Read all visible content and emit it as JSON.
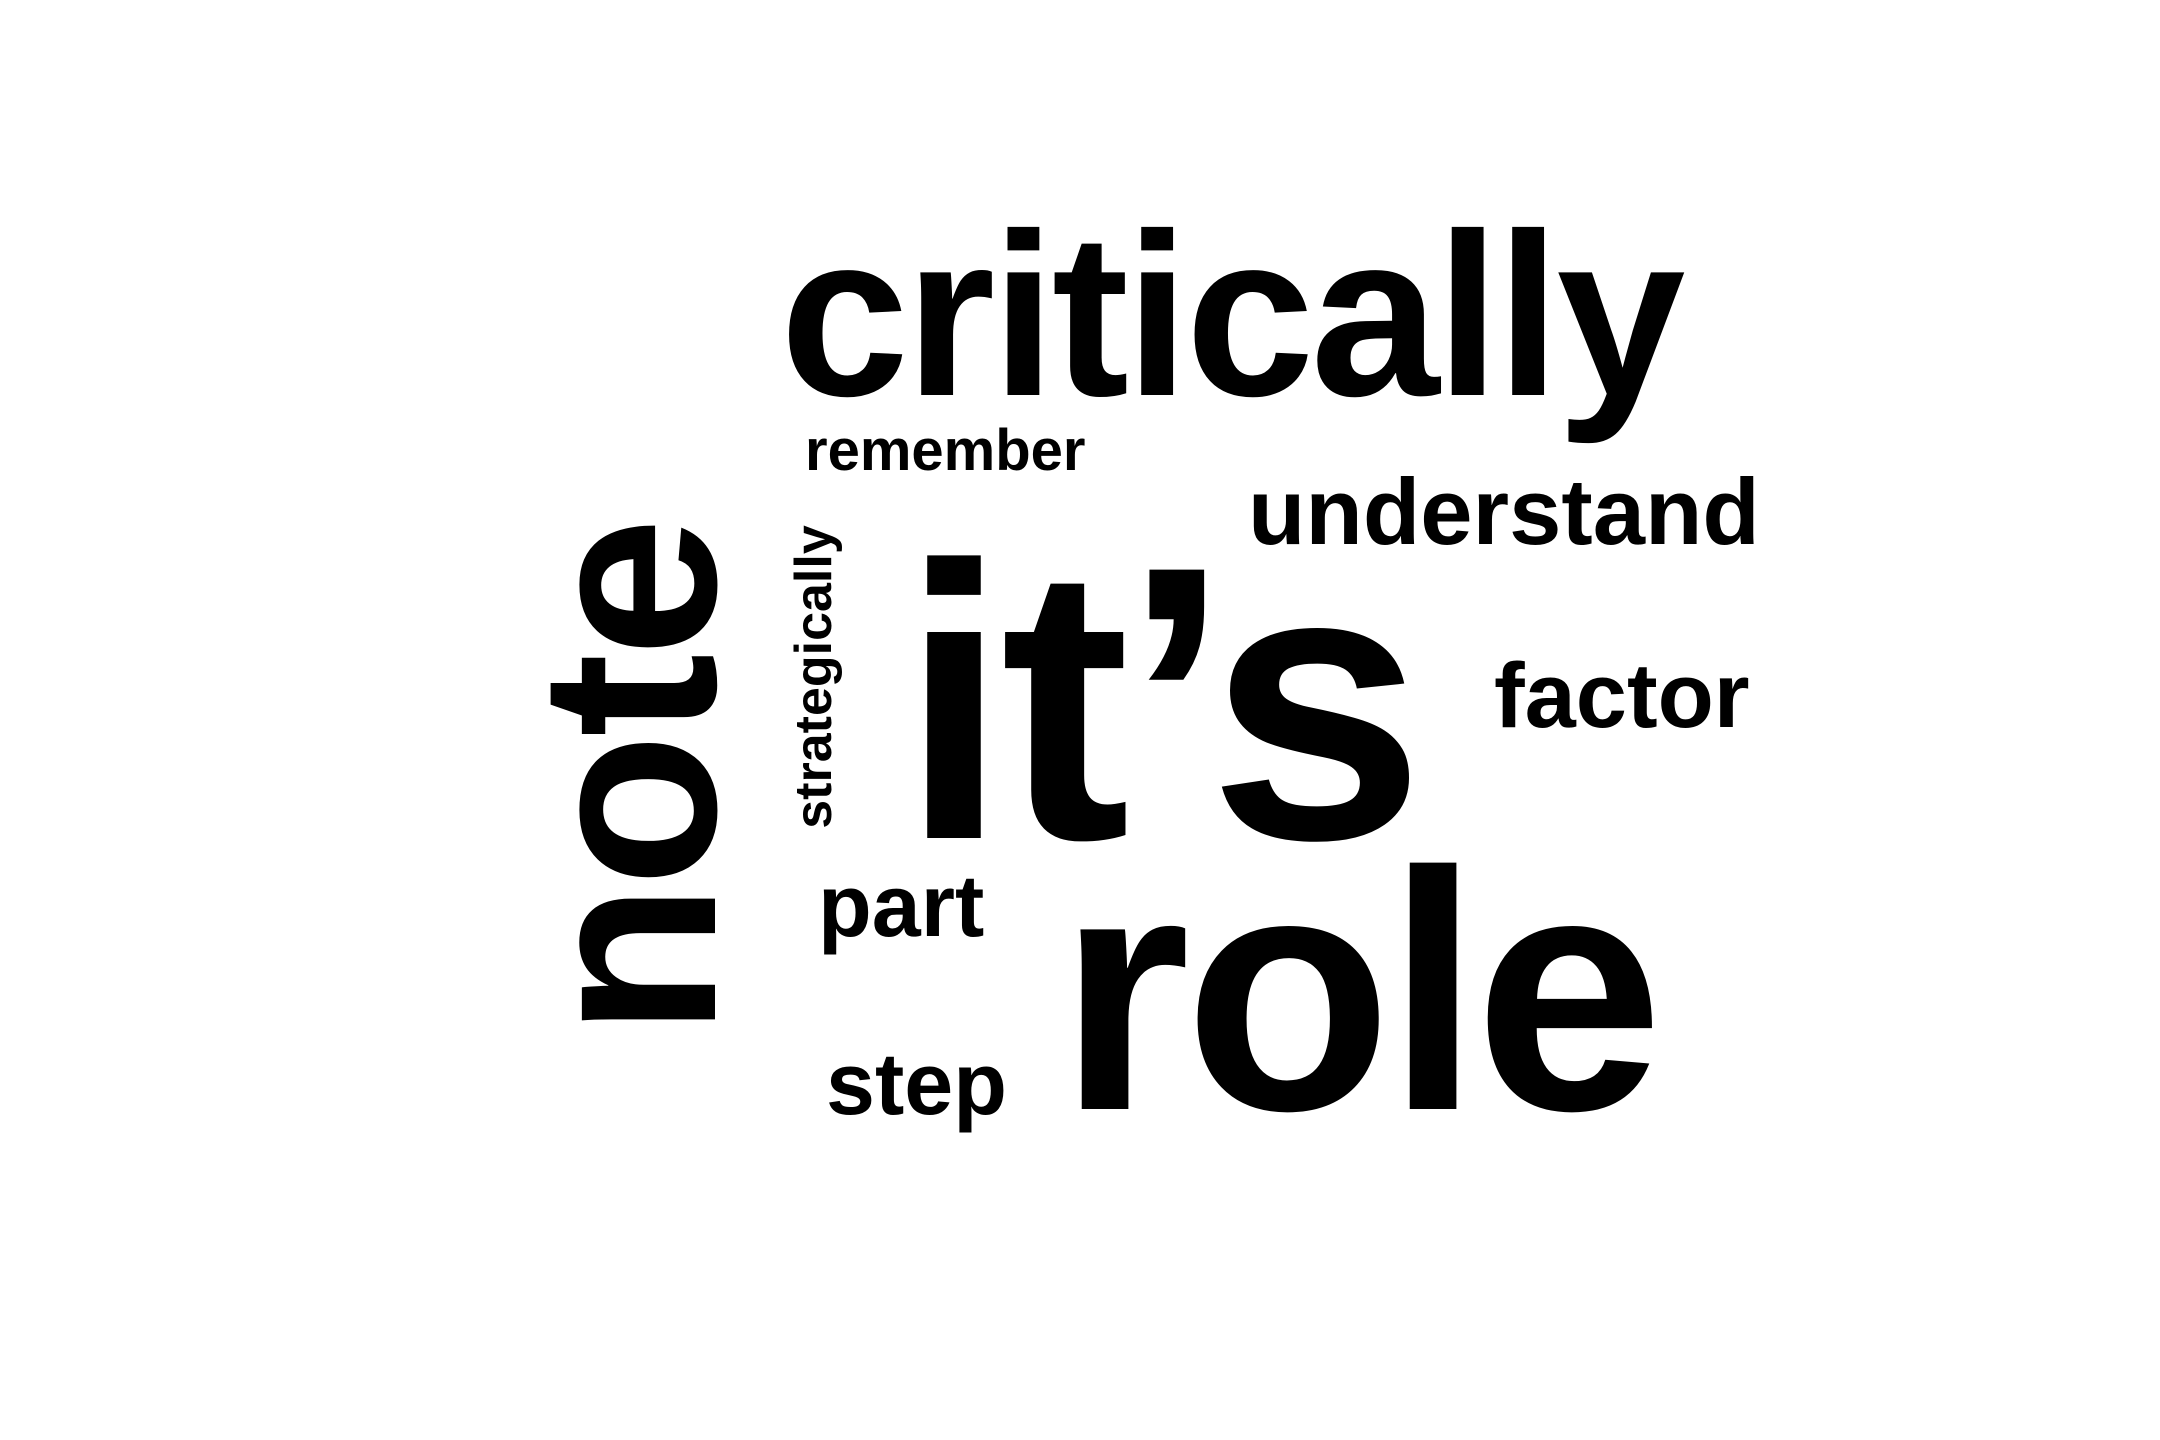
{
  "word_cloud": {
    "text_color": "#000000",
    "background_color": "#ffffff",
    "words": {
      "critically": "critically",
      "remember": "remember",
      "understand": "understand",
      "its": "it’s",
      "factor": "factor",
      "part": "part",
      "step": "step",
      "role": "role",
      "note": "note",
      "strategically": "strategically"
    }
  }
}
